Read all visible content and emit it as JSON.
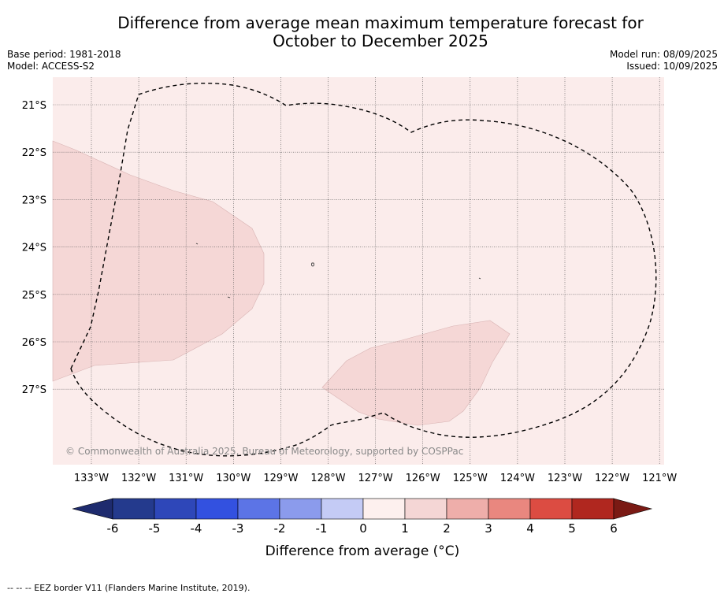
{
  "title_line1": "Difference from average mean maximum temperature forecast for",
  "title_line2": "October to December 2025",
  "base_period": "Base period: 1981-2018",
  "model": "Model: ACCESS-S2",
  "model_run": "Model run: 08/09/2025",
  "issued": "Issued: 10/09/2025",
  "copyright": "© Commonwealth of Australia 2025, Bureau of Meteorology, supported by COSPPac",
  "footer": "-- -- -- EEZ border V11 (Flanders Marine Institute, 2019).",
  "map": {
    "lat_labels": [
      "21°S",
      "22°S",
      "23°S",
      "24°S",
      "25°S",
      "26°S",
      "27°S"
    ],
    "lon_labels": [
      "133°W",
      "132°W",
      "131°W",
      "130°W",
      "129°W",
      "128°W",
      "127°W",
      "126°W",
      "125°W",
      "124°W",
      "123°W",
      "122°W",
      "121°W"
    ],
    "background_category": "0 to 1",
    "shaded_regions_category": "1 to 2",
    "colors": {
      "bin_0_1": "#fbeceb",
      "bin_1_2": "#f5d7d6"
    }
  },
  "colorbar": {
    "label": "Difference from average (°C)",
    "ticks": [
      "-6",
      "-5",
      "-4",
      "-3",
      "-2",
      "-1",
      "0",
      "1",
      "2",
      "3",
      "4",
      "5",
      "6"
    ],
    "colors": [
      "#243a8d",
      "#2e47b9",
      "#3351e0",
      "#5c74e6",
      "#8b9bec",
      "#c4cbf5",
      "#ebeefb",
      "#fdf0ee",
      "#f4d6d5",
      "#eeaeaa",
      "#e9877f",
      "#dc4c42",
      "#b0271f"
    ],
    "extend_low_color": "#1e2b6e",
    "extend_high_color": "#7a1a14"
  }
}
